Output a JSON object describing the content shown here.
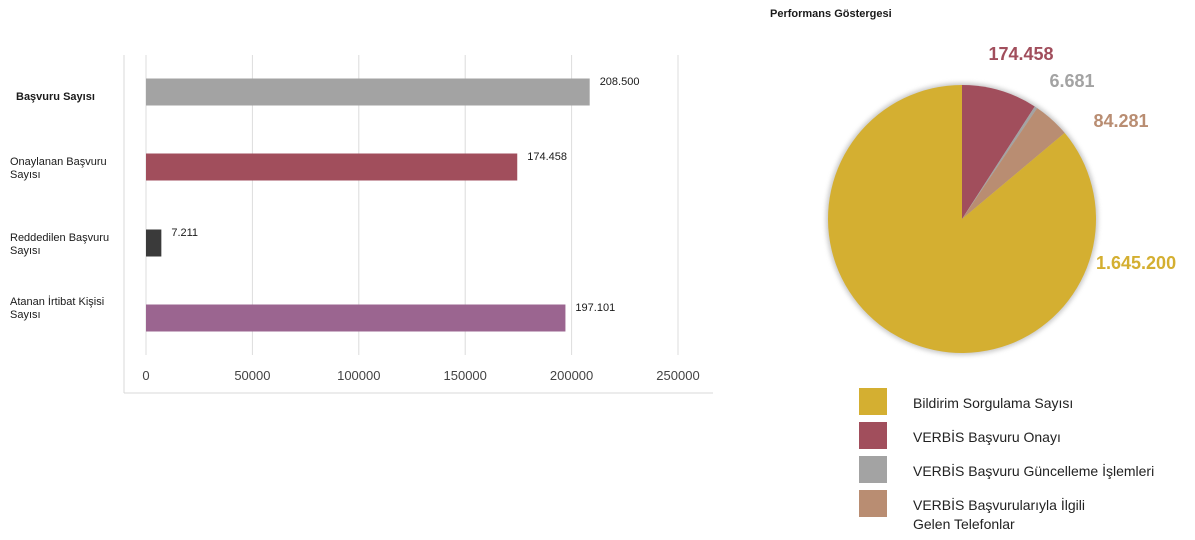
{
  "bar_chart_title": "",
  "pie_chart_title": "Performans Göstergesi",
  "chart_data": [
    {
      "type": "bar",
      "orientation": "horizontal",
      "categories": [
        "Başvuru Sayısı",
        "Onaylanan Başvuru Sayısı",
        "Reddedilen Başvuru Sayısı",
        "Atanan İrtibat Kişisi Sayısı"
      ],
      "values": [
        208500,
        174458,
        7211,
        197101
      ],
      "data_labels": [
        "208.500",
        "174.458",
        "7.211",
        "197.101"
      ],
      "colors": [
        "#a3a3a3",
        "#a14e5c",
        "#3a3a3a",
        "#9b6590"
      ],
      "xlim": [
        0,
        250000
      ],
      "xticks": [
        0,
        50000,
        100000,
        150000,
        200000,
        250000
      ],
      "xtick_labels": [
        "0",
        "50000",
        "100000",
        "150000",
        "200000",
        "250000"
      ],
      "grid": true,
      "title": ""
    },
    {
      "type": "pie",
      "title": "Performans Göstergesi",
      "labels": [
        "Bildirim Sorgulama Sayısı",
        "VERBİS Başvuru Onayı",
        "VERBİS Başvuru Güncelleme İşlemleri",
        "VERBİS Başvurularıyla İlgili Gelen Telefonlar"
      ],
      "values": [
        1645200,
        174458,
        6681,
        84281
      ],
      "data_labels": [
        "1.645.200",
        "174.458",
        "6.681",
        "84.281"
      ],
      "colors": [
        "#d4af31",
        "#a14e5c",
        "#a3a3a3",
        "#b98d72"
      ],
      "legend_position": "bottom"
    }
  ],
  "legend": [
    {
      "label_lines": [
        "Bildirim Sorgulama Sayısı"
      ],
      "color": "#d4af31"
    },
    {
      "label_lines": [
        "VERBİS Başvuru Onayı"
      ],
      "color": "#a14e5c"
    },
    {
      "label_lines": [
        "VERBİS Başvuru Güncelleme İşlemleri"
      ],
      "color": "#a3a3a3"
    },
    {
      "label_lines": [
        "VERBİS Başvurularıyla İlgili",
        "Gelen Telefonlar"
      ],
      "color": "#b98d72"
    }
  ]
}
